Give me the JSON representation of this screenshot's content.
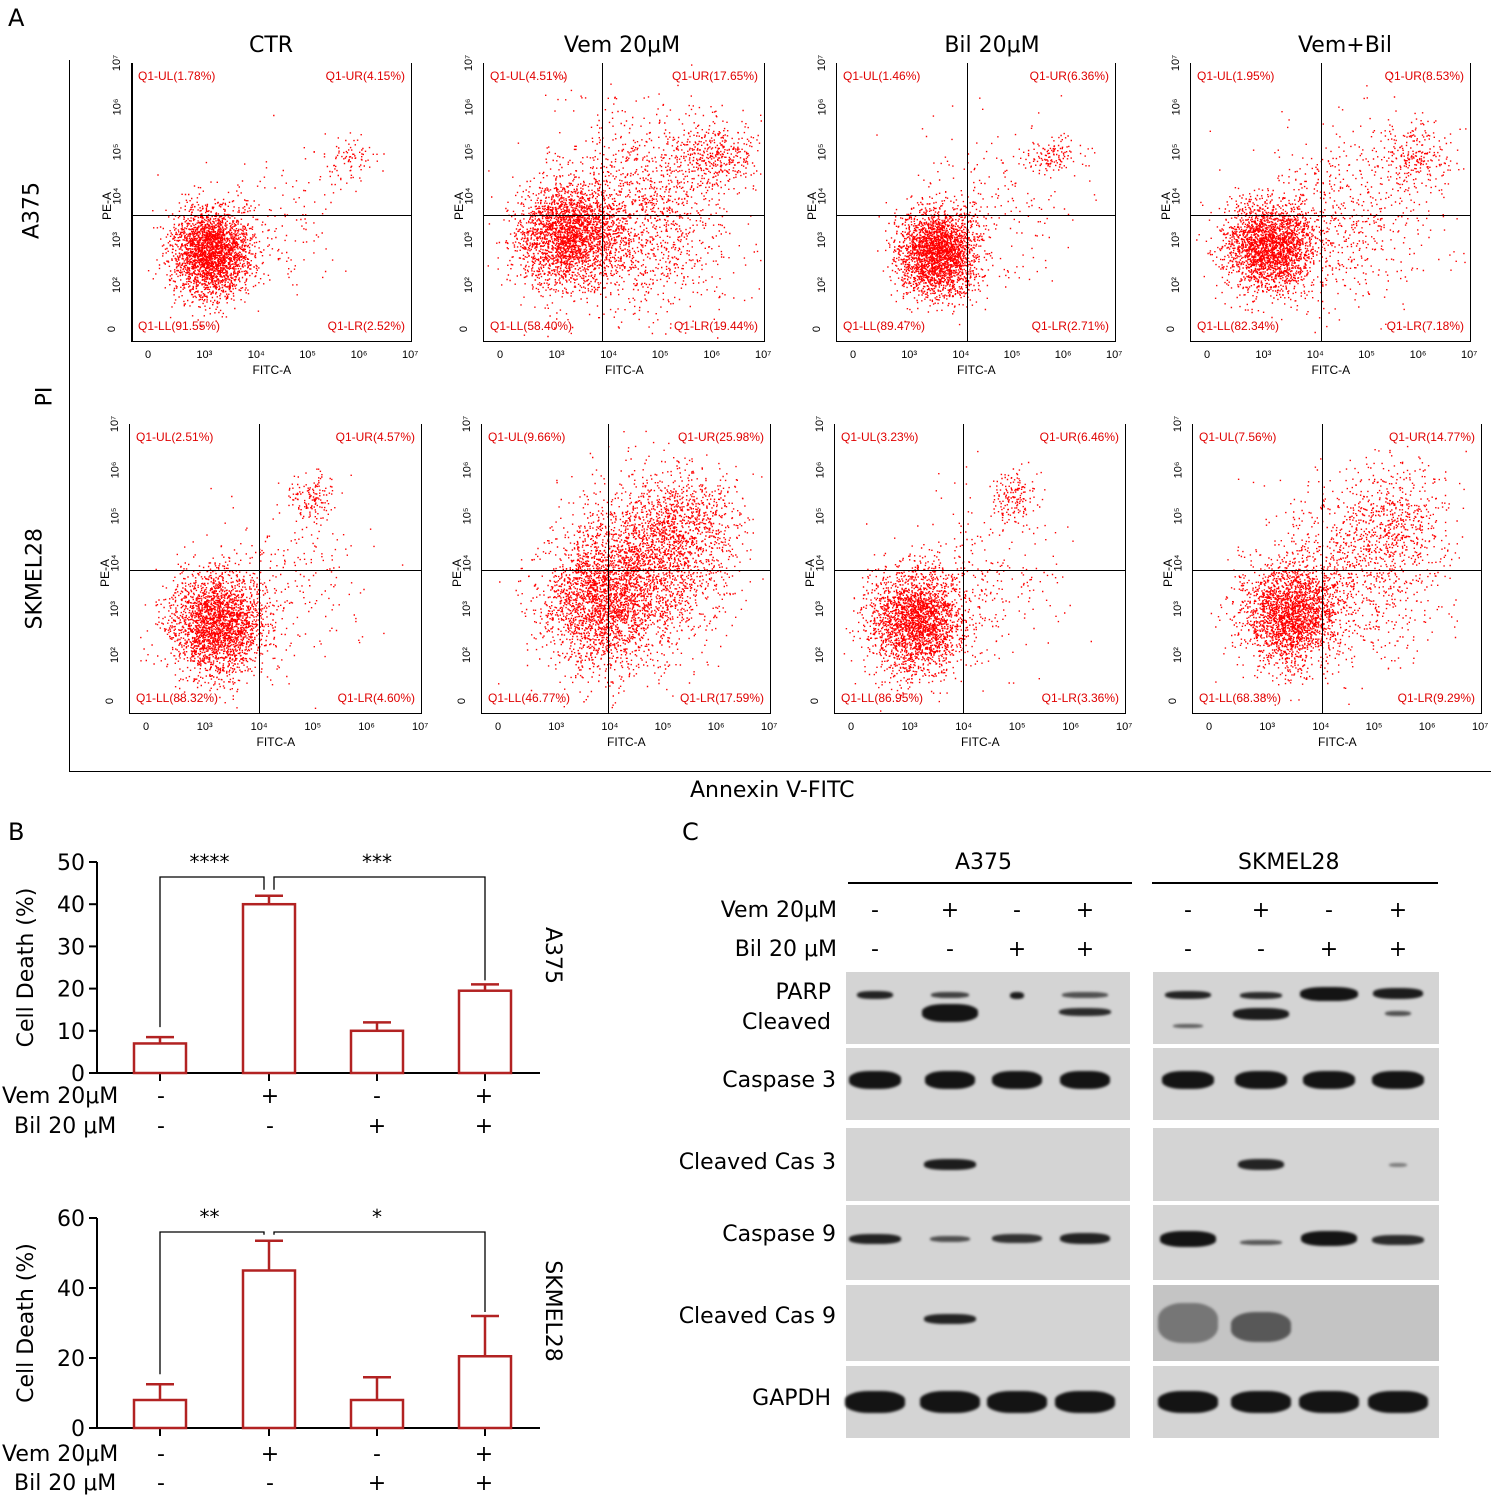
{
  "panel_a": {
    "letter": "A",
    "columns": [
      "CTR",
      "Vem 20μM",
      "Bil 20μM",
      "Vem+Bil"
    ],
    "rows": [
      "A375",
      "SKMEL28"
    ],
    "y_axis_label": "PI",
    "x_axis_label": "Annexin V-FITC",
    "plot_x_label": "FITC-A",
    "plot_y_label": "PE-A",
    "x_ticks": [
      "0",
      "10³",
      "10⁴",
      "10⁵",
      "10⁶",
      "10⁷"
    ],
    "y_ticks": [
      "0",
      "10²",
      "10³",
      "10⁴",
      "10⁵",
      "10⁶",
      "10⁷"
    ],
    "plots": [
      {
        "row": "A375",
        "col": "CTR",
        "UL": "Q1-UL(1.78%)",
        "UR": "Q1-UR(4.15%)",
        "LL": "Q1-LL(91.55%)",
        "LR": "Q1-LR(2.52%)"
      },
      {
        "row": "A375",
        "col": "Vem 20μM",
        "UL": "Q1-UL(4.51%)",
        "UR": "Q1-UR(17.65%)",
        "LL": "Q1-LL(58.40%)",
        "LR": "Q1-LR(19.44%)"
      },
      {
        "row": "A375",
        "col": "Bil 20μM",
        "UL": "Q1-UL(1.46%)",
        "UR": "Q1-UR(6.36%)",
        "LL": "Q1-LL(89.47%)",
        "LR": "Q1-LR(2.71%)"
      },
      {
        "row": "A375",
        "col": "Vem+Bil",
        "UL": "Q1-UL(1.95%)",
        "UR": "Q1-UR(8.53%)",
        "LL": "Q1-LL(82.34%)",
        "LR": "Q1-LR(7.18%)"
      },
      {
        "row": "SKMEL28",
        "col": "CTR",
        "UL": "Q1-UL(2.51%)",
        "UR": "Q1-UR(4.57%)",
        "LL": "Q1-LL(88.32%)",
        "LR": "Q1-LR(4.60%)"
      },
      {
        "row": "SKMEL28",
        "col": "Vem 20μM",
        "UL": "Q1-UL(9.66%)",
        "UR": "Q1-UR(25.98%)",
        "LL": "Q1-LL(46.77%)",
        "LR": "Q1-LR(17.59%)"
      },
      {
        "row": "SKMEL28",
        "col": "Bil 20μM",
        "UL": "Q1-UL(3.23%)",
        "UR": "Q1-UR(6.46%)",
        "LL": "Q1-LL(86.95%)",
        "LR": "Q1-LR(3.36%)"
      },
      {
        "row": "SKMEL28",
        "col": "Vem+Bil",
        "UL": "Q1-UL(7.56%)",
        "UR": "Q1-UR(14.77%)",
        "LL": "Q1-LL(68.38%)",
        "LR": "Q1-LR(9.29%)"
      }
    ]
  },
  "panel_b": {
    "letter": "B",
    "treatment_rows": {
      "vem_label": "Vem 20μM",
      "bil_label": "Bil 20 μM",
      "vem_signs": [
        "-",
        "+",
        "-",
        "+"
      ],
      "bil_signs": [
        "-",
        "-",
        "+",
        "+"
      ]
    }
  },
  "chart_data": [
    {
      "type": "bar",
      "title": "A375",
      "ylabel": "Cell Death (%)",
      "ylim": [
        0,
        50
      ],
      "yticks": [
        "0",
        "10",
        "20",
        "30",
        "40",
        "50"
      ],
      "categories": [
        "CTR",
        "Vem",
        "Bil",
        "Vem+Bil"
      ],
      "values": [
        7,
        40,
        10,
        19.5
      ],
      "errors": [
        1.5,
        2,
        2,
        1.5
      ],
      "significance": [
        {
          "pair": "CTR-Vem",
          "label": "****"
        },
        {
          "pair": "Vem-Vem+Bil",
          "label": "***"
        }
      ],
      "bar_color": "#b22222"
    },
    {
      "type": "bar",
      "title": "SKMEL28",
      "ylabel": "Cell Death (%)",
      "ylim": [
        0,
        60
      ],
      "yticks": [
        "0",
        "20",
        "40",
        "60"
      ],
      "categories": [
        "CTR",
        "Vem",
        "Bil",
        "Vem+Bil"
      ],
      "values": [
        8,
        45,
        8,
        20.5
      ],
      "errors": [
        4.5,
        8.5,
        6.5,
        11.5
      ],
      "significance": [
        {
          "pair": "CTR-Vem",
          "label": "**"
        },
        {
          "pair": "Vem-Vem+Bil",
          "label": "*"
        }
      ],
      "bar_color": "#b22222"
    }
  ],
  "panel_c": {
    "letter": "C",
    "cell_lines": [
      "A375",
      "SKMEL28"
    ],
    "vem_label": "Vem 20μM",
    "bil_label": "Bil 20 μM",
    "vem_signs": [
      "-",
      "+",
      "-",
      "+"
    ],
    "bil_signs": [
      "-",
      "-",
      "+",
      "+"
    ],
    "proteins": [
      "PARP",
      "Cleaved",
      "Caspase 3",
      "Cleaved Cas 3",
      "Caspase 9",
      "Cleaved Cas 9",
      "GAPDH"
    ]
  }
}
